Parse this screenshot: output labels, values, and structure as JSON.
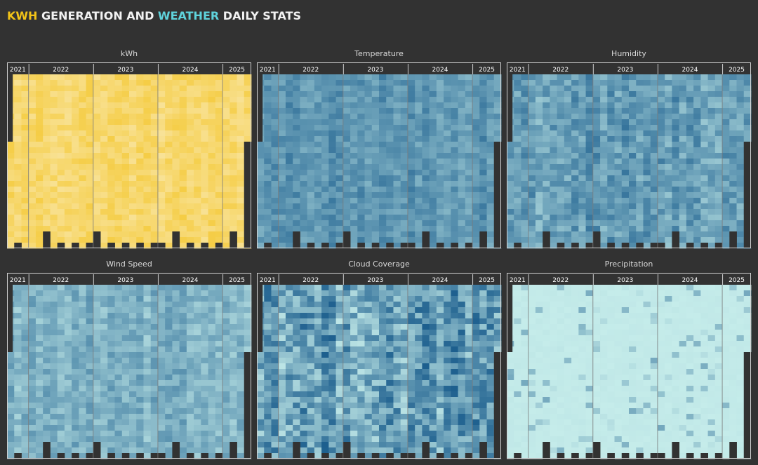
{
  "title": {
    "kwh": "KWH",
    "mid": "GENERATION AND",
    "weather": "WEATHER",
    "end": "DAILY STATS"
  },
  "chart_data": [
    {
      "type": "heatmap",
      "title": "kWh",
      "years": [
        "2021",
        "2022",
        "2023",
        "2024",
        "2025"
      ],
      "palette": [
        "#fbf1cf",
        "#f3c21c"
      ],
      "level": 0.55,
      "spread": 0.2
    },
    {
      "type": "heatmap",
      "title": "Temperature",
      "years": [
        "2021",
        "2022",
        "2023",
        "2024",
        "2025"
      ],
      "palette": [
        "#c5ecea",
        "#1d5f8e"
      ],
      "level": 0.6,
      "spread": 0.18
    },
    {
      "type": "heatmap",
      "title": "Humidity",
      "years": [
        "2021",
        "2022",
        "2023",
        "2024",
        "2025"
      ],
      "palette": [
        "#c5ecea",
        "#1d5f8e"
      ],
      "level": 0.55,
      "spread": 0.25
    },
    {
      "type": "heatmap",
      "title": "Wind Speed",
      "years": [
        "2021",
        "2022",
        "2023",
        "2024",
        "2025"
      ],
      "palette": [
        "#c5ecea",
        "#1d5f8e"
      ],
      "level": 0.4,
      "spread": 0.2
    },
    {
      "type": "heatmap",
      "title": "Cloud Coverage",
      "years": [
        "2021",
        "2022",
        "2023",
        "2024",
        "2025"
      ],
      "palette": [
        "#c5ecea",
        "#1d5f8e"
      ],
      "level": 0.55,
      "spread": 0.42
    },
    {
      "type": "heatmap",
      "title": "Precipitation",
      "years": [
        "2021",
        "2022",
        "2023",
        "2024",
        "2025"
      ],
      "palette": [
        "#c5ecea",
        "#1d5f8e"
      ],
      "level": 0.03,
      "spread": 0.08
    }
  ]
}
